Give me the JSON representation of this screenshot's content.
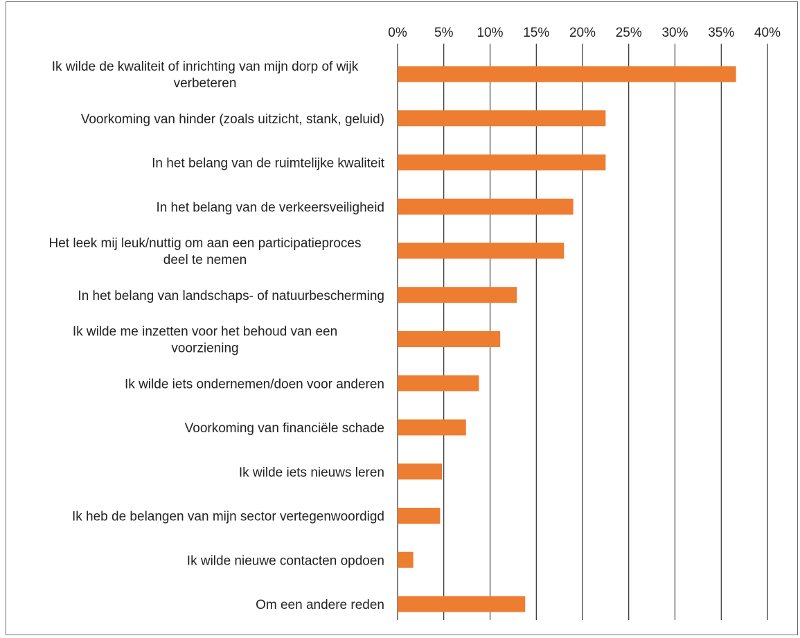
{
  "chart_data": {
    "type": "bar",
    "orientation": "horizontal",
    "xaxis_position": "top",
    "grid": "vertical",
    "legend": "none",
    "bar_color": "#ED7D31",
    "grid_color": "#000000",
    "xlim": [
      0,
      40
    ],
    "xticks": [
      0,
      5,
      10,
      15,
      20,
      25,
      30,
      35,
      40
    ],
    "tick_labels": [
      "0%",
      "5%",
      "10%",
      "15%",
      "20%",
      "25%",
      "30%",
      "35%",
      "40%"
    ],
    "categories": [
      [
        "Ik wilde de kwaliteit of inrichting van mijn dorp of wijk",
        "verbeteren"
      ],
      [
        "Voorkoming van hinder (zoals uitzicht, stank, geluid)"
      ],
      [
        "In het belang van de ruimtelijke kwaliteit"
      ],
      [
        "In het belang van de verkeersveiligheid"
      ],
      [
        "Het leek mij leuk/nuttig om aan een participatieproces",
        "deel te nemen"
      ],
      [
        "In het belang van landschaps- of natuurbescherming"
      ],
      [
        "Ik wilde me inzetten voor het behoud van een",
        "voorziening"
      ],
      [
        "Ik wilde iets ondernemen/doen voor anderen"
      ],
      [
        "Voorkoming van financiële schade"
      ],
      [
        "Ik wilde iets nieuws leren"
      ],
      [
        "Ik heb de belangen van mijn sector vertegenwoordigd"
      ],
      [
        "Ik wilde nieuwe contacten opdoen"
      ],
      [
        "Om een andere reden"
      ]
    ],
    "values": [
      36.6,
      22.5,
      22.5,
      19.0,
      18.0,
      12.9,
      11.1,
      8.8,
      7.4,
      4.8,
      4.6,
      1.7,
      13.8
    ]
  }
}
